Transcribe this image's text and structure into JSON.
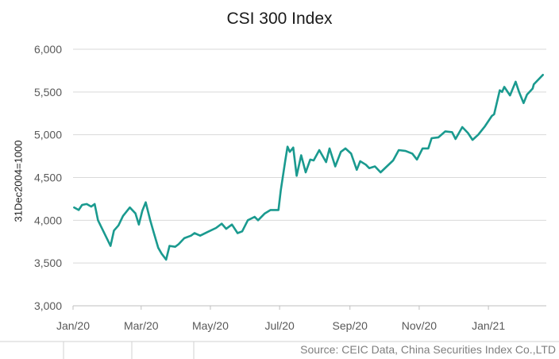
{
  "chart_data": {
    "type": "line",
    "title": "CSI 300 Index",
    "ylabel": "31Dec2004=1000",
    "xlabel": "",
    "ylim": [
      3000,
      6000
    ],
    "yticks": [
      "3,000",
      "3,500",
      "4,000",
      "4,500",
      "5,000",
      "5,500",
      "6,000"
    ],
    "xticks": [
      "Jan/20",
      "Mar/20",
      "May/20",
      "Jul/20",
      "Sep/20",
      "Nov/20",
      "Jan/21"
    ],
    "grid": "horizontal",
    "legend": "none",
    "line_color": "#1a9a8f",
    "series": [
      {
        "x": [
          "2020-01-02",
          "2020-01-06",
          "2020-01-09",
          "2020-01-13",
          "2020-01-17",
          "2020-01-20",
          "2020-01-23",
          "2020-02-03",
          "2020-02-06",
          "2020-02-10",
          "2020-02-14",
          "2020-02-20",
          "2020-02-25",
          "2020-02-28",
          "2020-03-02",
          "2020-03-05",
          "2020-03-09",
          "2020-03-12",
          "2020-03-16",
          "2020-03-19",
          "2020-03-23",
          "2020-03-26",
          "2020-03-31",
          "2020-04-03",
          "2020-04-08",
          "2020-04-14",
          "2020-04-17",
          "2020-04-22",
          "2020-04-28",
          "2020-05-06",
          "2020-05-11",
          "2020-05-15",
          "2020-05-20",
          "2020-05-25",
          "2020-05-29",
          "2020-06-03",
          "2020-06-09",
          "2020-06-12",
          "2020-06-18",
          "2020-06-23",
          "2020-06-30",
          "2020-07-02",
          "2020-07-06",
          "2020-07-08",
          "2020-07-10",
          "2020-07-13",
          "2020-07-16",
          "2020-07-20",
          "2020-07-24",
          "2020-07-28",
          "2020-07-31",
          "2020-08-05",
          "2020-08-11",
          "2020-08-14",
          "2020-08-19",
          "2020-08-24",
          "2020-08-28",
          "2020-09-02",
          "2020-09-07",
          "2020-09-10",
          "2020-09-15",
          "2020-09-18",
          "2020-09-23",
          "2020-09-28",
          "2020-10-09",
          "2020-10-14",
          "2020-10-20",
          "2020-10-26",
          "2020-10-30",
          "2020-11-04",
          "2020-11-09",
          "2020-11-12",
          "2020-11-18",
          "2020-11-24",
          "2020-11-30",
          "2020-12-03",
          "2020-12-09",
          "2020-12-14",
          "2020-12-18",
          "2020-12-23",
          "2020-12-29",
          "2021-01-04",
          "2021-01-06",
          "2021-01-11",
          "2021-01-13",
          "2021-01-15",
          "2021-01-20",
          "2021-01-25",
          "2021-01-28",
          "2021-02-01",
          "2021-02-04",
          "2021-02-09",
          "2021-02-10",
          "2021-02-18"
        ],
        "values": [
          4150,
          4120,
          4180,
          4190,
          4160,
          4190,
          4000,
          3700,
          3880,
          3940,
          4050,
          4150,
          4080,
          3950,
          4110,
          4210,
          4000,
          3860,
          3680,
          3610,
          3540,
          3700,
          3690,
          3720,
          3790,
          3820,
          3850,
          3820,
          3860,
          3910,
          3960,
          3900,
          3950,
          3850,
          3870,
          4000,
          4040,
          4000,
          4080,
          4120,
          4120,
          4350,
          4700,
          4860,
          4800,
          4850,
          4520,
          4760,
          4560,
          4710,
          4700,
          4820,
          4680,
          4840,
          4630,
          4800,
          4840,
          4780,
          4590,
          4690,
          4650,
          4610,
          4630,
          4560,
          4700,
          4820,
          4810,
          4780,
          4710,
          4840,
          4840,
          4960,
          4970,
          5040,
          5030,
          4950,
          5090,
          5020,
          4940,
          5000,
          5100,
          5220,
          5240,
          5520,
          5500,
          5560,
          5460,
          5620,
          5500,
          5370,
          5470,
          5540,
          5590,
          5700
        ]
      }
    ],
    "source": "Source: CEIC Data, China Securities Index Co.,LTD"
  }
}
